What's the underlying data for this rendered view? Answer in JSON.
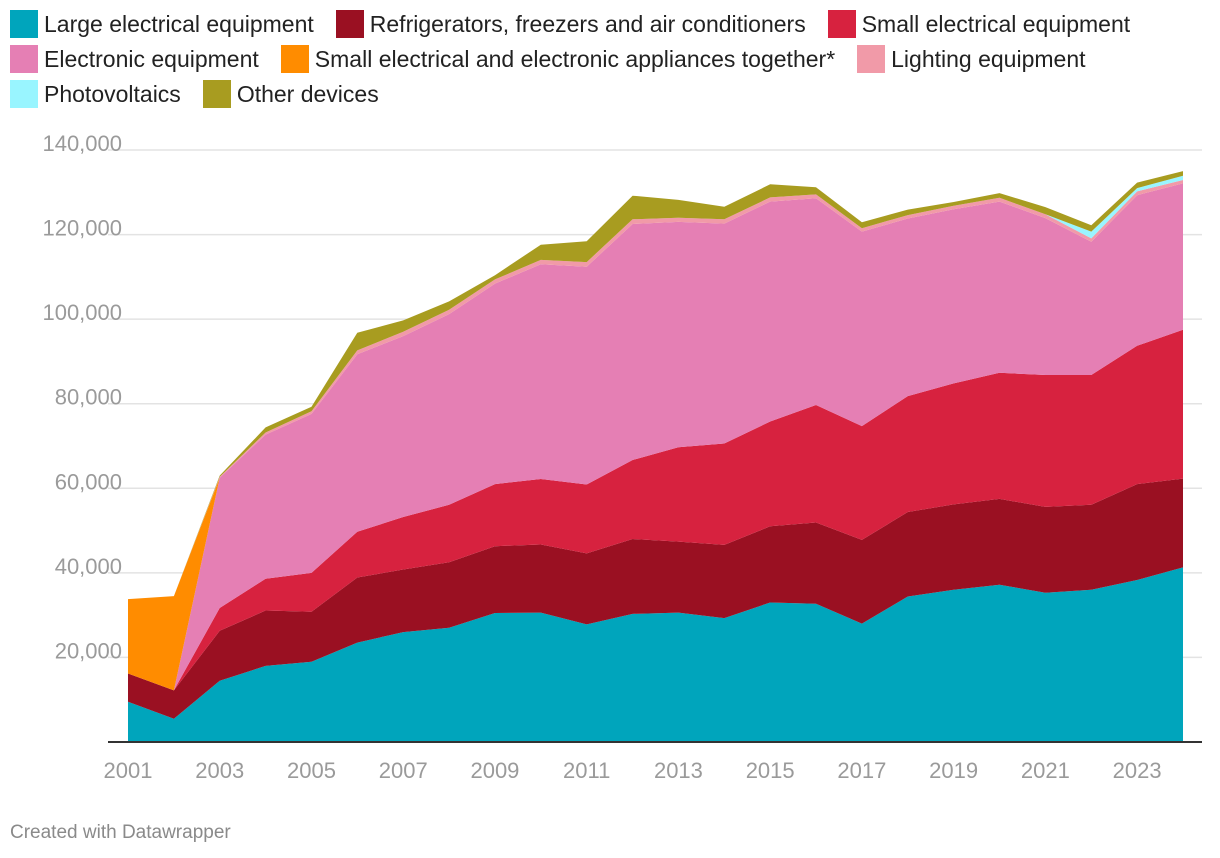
{
  "chart_data": {
    "type": "area",
    "stacked": true,
    "x": [
      2001,
      2002,
      2003,
      2004,
      2005,
      2006,
      2007,
      2008,
      2009,
      2010,
      2011,
      2012,
      2013,
      2014,
      2015,
      2016,
      2017,
      2018,
      2019,
      2020,
      2021,
      2022,
      2023,
      2024
    ],
    "series": [
      {
        "name": "Large electrical equipment",
        "color": "#00a5bc",
        "values": [
          9500,
          5500,
          14500,
          18000,
          19000,
          23500,
          26000,
          27000,
          30500,
          30600,
          27800,
          30300,
          30600,
          29300,
          33000,
          32700,
          28000,
          34400,
          36000,
          37200,
          35300,
          36000,
          38300,
          41300
        ]
      },
      {
        "name": "Refrigerators, freezers and air conditioners",
        "color": "#9a1022",
        "values": [
          6700,
          6700,
          11800,
          13100,
          11800,
          15400,
          14800,
          15500,
          15800,
          16100,
          16800,
          17700,
          16800,
          17300,
          18000,
          19200,
          19800,
          20000,
          20200,
          20300,
          20300,
          20100,
          22700,
          21000
        ]
      },
      {
        "name": "Small electrical equipment",
        "color": "#d7223f",
        "values": [
          0,
          0,
          5400,
          7500,
          9200,
          10800,
          12400,
          13600,
          14700,
          15500,
          16300,
          18700,
          22300,
          24000,
          24800,
          27800,
          26900,
          27400,
          28600,
          29800,
          31200,
          30700,
          32700,
          35200
        ]
      },
      {
        "name": "Electronic equipment",
        "color": "#e57fb4",
        "values": [
          0,
          0,
          30800,
          34100,
          37600,
          42000,
          42800,
          45100,
          47400,
          50800,
          51500,
          55800,
          53300,
          52000,
          52000,
          48900,
          46000,
          42000,
          41200,
          40500,
          37100,
          31500,
          35600,
          34600
        ]
      },
      {
        "name": "Small electrical and electronic appliances together*",
        "color": "#ff8c00",
        "values": [
          17600,
          22300,
          0,
          0,
          0,
          0,
          0,
          0,
          0,
          0,
          0,
          0,
          0,
          0,
          0,
          0,
          0,
          0,
          0,
          0,
          0,
          0,
          0,
          0
        ]
      },
      {
        "name": "Lighting equipment",
        "color": "#f19aa8",
        "values": [
          0,
          0,
          200,
          500,
          600,
          900,
          1000,
          1000,
          1000,
          1000,
          1100,
          1100,
          1000,
          1000,
          1000,
          900,
          800,
          800,
          800,
          900,
          900,
          800,
          900,
          800
        ]
      },
      {
        "name": "Photovoltaics",
        "color": "#99f5ff",
        "values": [
          0,
          0,
          0,
          0,
          0,
          0,
          0,
          0,
          0,
          0,
          0,
          0,
          0,
          0,
          0,
          0,
          0,
          0,
          0,
          0,
          0,
          1600,
          800,
          1000
        ]
      },
      {
        "name": "Other devices",
        "color": "#a89c20",
        "values": [
          0,
          0,
          300,
          1200,
          1100,
          4200,
          2700,
          2000,
          1000,
          3600,
          4900,
          5600,
          4200,
          3000,
          3100,
          1700,
          1400,
          1300,
          900,
          1100,
          1700,
          1500,
          1300,
          1100
        ]
      }
    ],
    "ylim": [
      0,
      140000
    ],
    "y_ticks": [
      20000,
      40000,
      60000,
      80000,
      100000,
      120000,
      140000
    ],
    "y_tick_labels": [
      "20,000",
      "40,000",
      "60,000",
      "80,000",
      "100,000",
      "120,000",
      "140,000"
    ],
    "x_ticks": [
      2001,
      2003,
      2005,
      2007,
      2009,
      2011,
      2013,
      2015,
      2017,
      2019,
      2021,
      2023
    ],
    "x_tick_labels": [
      "2001",
      "2003",
      "2005",
      "2007",
      "2009",
      "2011",
      "2013",
      "2015",
      "2017",
      "2019",
      "2021",
      "2023"
    ],
    "grid": true,
    "legend_position": "top"
  },
  "credit": "Created with Datawrapper"
}
